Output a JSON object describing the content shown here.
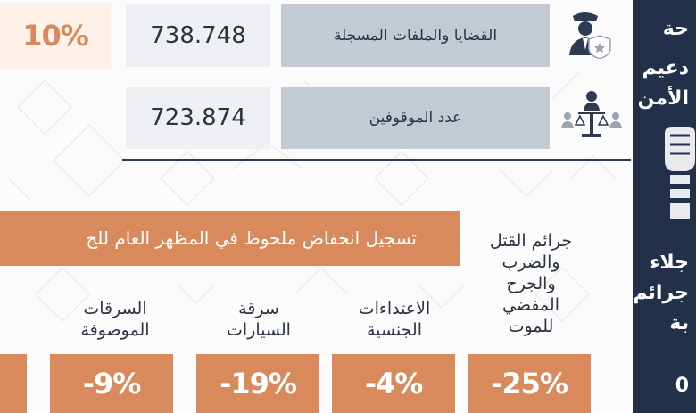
{
  "top_change": "10%",
  "stats": [
    {
      "label": "القضايا والملفات المسجلة",
      "value": "738.748",
      "icon": "police-officer-badge-icon"
    },
    {
      "label": "عدد الموقوفين",
      "value": "723.874",
      "icon": "justice-scales-icon"
    }
  ],
  "side_panel": {
    "lines": [
      "حة",
      "دعيم",
      "الأمن",
      "جلاء",
      "جرائم",
      "بة",
      "0"
    ],
    "icon": "fist-icon",
    "background": "#23304a"
  },
  "banner_text": "تسجيل انخفاض ملحوظ في المظهر العام للج",
  "categories": [
    {
      "label": "جرائم القتل والضرب والجرح المفضي للموت",
      "lines": [
        "جرائم القتل",
        "والضرب",
        "والجرح",
        "المفضي",
        "للموت"
      ],
      "change": "-25%"
    },
    {
      "label": "الاعتداءات الجنسية",
      "lines": [
        "الاعتداءات",
        "الجنسية"
      ],
      "change": "-4%"
    },
    {
      "label": "سرقة السيارات",
      "lines": [
        "سرقة",
        "السيارات"
      ],
      "change": "-19%"
    },
    {
      "label": "السرقات الموصوفة",
      "lines": [
        "السرقات",
        "الموصوفة"
      ],
      "change": "-9%"
    },
    {
      "label": "",
      "lines": [],
      "change": ""
    }
  ],
  "colors": {
    "accent": "#d98a5c",
    "navy": "#23304a",
    "label_bg": "#c3cad4",
    "value_bg": "#eef0f3",
    "tint": "#fdf1ea"
  }
}
